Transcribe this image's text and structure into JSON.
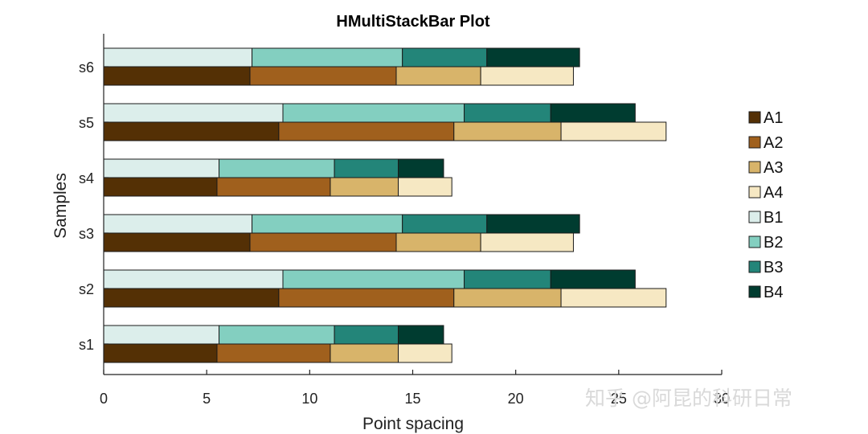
{
  "chart_data": {
    "type": "bar",
    "orientation": "horizontal",
    "stacked": true,
    "title": "HMultiStackBar Plot",
    "xlabel": "Point spacing",
    "ylabel": "Samples",
    "xlim": [
      0,
      30
    ],
    "xticks": [
      0,
      5,
      10,
      15,
      20,
      25,
      30
    ],
    "categories": [
      "s1",
      "s2",
      "s3",
      "s4",
      "s5",
      "s6"
    ],
    "groups": [
      {
        "position": "lower",
        "series": [
          {
            "name": "A1",
            "color": "#543005",
            "values": [
              5.5,
              8.5,
              7.1,
              5.5,
              8.5,
              7.1
            ]
          },
          {
            "name": "A2",
            "color": "#A0601D",
            "values": [
              5.5,
              8.5,
              7.1,
              5.5,
              8.5,
              7.1
            ]
          },
          {
            "name": "A3",
            "color": "#D8B46A",
            "values": [
              3.3,
              5.2,
              4.1,
              3.3,
              5.2,
              4.1
            ]
          },
          {
            "name": "A4",
            "color": "#F6E8C3",
            "values": [
              2.6,
              5.1,
              4.5,
              2.6,
              5.1,
              4.5
            ]
          }
        ]
      },
      {
        "position": "upper",
        "series": [
          {
            "name": "B1",
            "color": "#DCEEEB",
            "values": [
              5.6,
              8.7,
              7.2,
              5.6,
              8.7,
              7.2
            ]
          },
          {
            "name": "B2",
            "color": "#83CFC0",
            "values": [
              5.6,
              8.8,
              7.3,
              5.6,
              8.8,
              7.3
            ]
          },
          {
            "name": "B3",
            "color": "#238579",
            "values": [
              3.1,
              4.2,
              4.1,
              3.1,
              4.2,
              4.1
            ]
          },
          {
            "name": "B4",
            "color": "#003C30",
            "values": [
              2.2,
              4.1,
              4.5,
              2.2,
              4.1,
              4.5
            ]
          }
        ]
      }
    ],
    "legend": {
      "placement": "right",
      "entries": [
        "A1",
        "A2",
        "A3",
        "A4",
        "B1",
        "B2",
        "B3",
        "B4"
      ]
    },
    "grid": false
  },
  "watermark": "知乎 @阿昆的科研日常"
}
